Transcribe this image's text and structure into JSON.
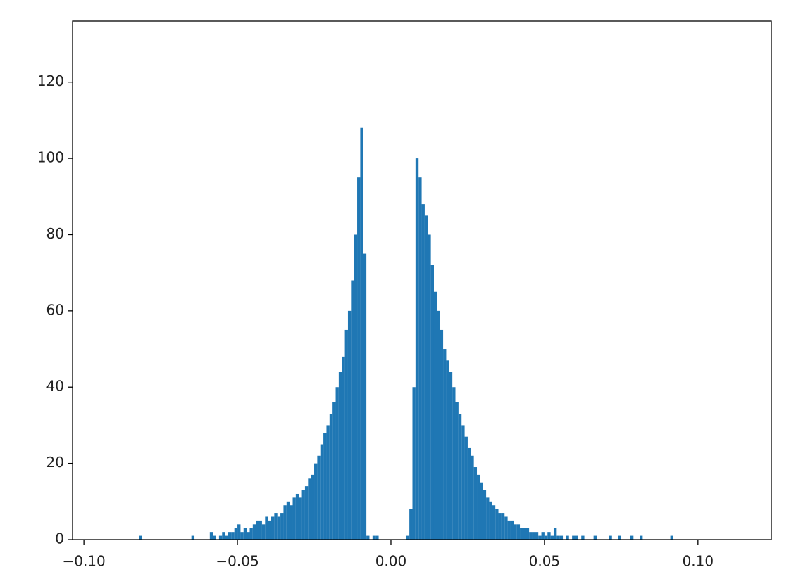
{
  "chart_data": {
    "type": "histogram",
    "bins": [
      -0.082,
      -0.081,
      -0.08,
      -0.079,
      -0.078,
      -0.077,
      -0.076,
      -0.075,
      -0.074,
      -0.073,
      -0.072,
      -0.071,
      -0.07,
      -0.069,
      -0.068,
      -0.067,
      -0.066,
      -0.065,
      -0.064,
      -0.063,
      -0.062,
      -0.061,
      -0.06,
      -0.059,
      -0.058,
      -0.057,
      -0.056,
      -0.055,
      -0.054,
      -0.053,
      -0.052,
      -0.051,
      -0.05,
      -0.049,
      -0.048,
      -0.047,
      -0.046,
      -0.045,
      -0.044,
      -0.043,
      -0.042,
      -0.041,
      -0.04,
      -0.039,
      -0.038,
      -0.037,
      -0.036,
      -0.035,
      -0.034,
      -0.033,
      -0.032,
      -0.031,
      -0.03,
      -0.029,
      -0.028,
      -0.027,
      -0.026,
      -0.025,
      -0.024,
      -0.023,
      -0.022,
      -0.021,
      -0.02,
      -0.019,
      -0.018,
      -0.017,
      -0.016,
      -0.015,
      -0.014,
      -0.013,
      -0.012,
      -0.011,
      -0.01,
      -0.009,
      -0.008,
      -0.007,
      -0.006,
      -0.005,
      -0.004,
      -0.003,
      -0.002,
      -0.001,
      0,
      0.001,
      0.002,
      0.003,
      0.004,
      0.005,
      0.006,
      0.007,
      0.008,
      0.009,
      0.01,
      0.011,
      0.012,
      0.013,
      0.014,
      0.015,
      0.016,
      0.017,
      0.018,
      0.019,
      0.02,
      0.021,
      0.022,
      0.023,
      0.024,
      0.025,
      0.026,
      0.027,
      0.028,
      0.029,
      0.03,
      0.031,
      0.032,
      0.033,
      0.034,
      0.035,
      0.036,
      0.037,
      0.038,
      0.039,
      0.04,
      0.041,
      0.042,
      0.043,
      0.044,
      0.045,
      0.046,
      0.047,
      0.048,
      0.049,
      0.05,
      0.051,
      0.052,
      0.053,
      0.054,
      0.055,
      0.056,
      0.057,
      0.058,
      0.059,
      0.06,
      0.061,
      0.062,
      0.063,
      0.064,
      0.065,
      0.066,
      0.067,
      0.068,
      0.069,
      0.07,
      0.071,
      0.072,
      0.073,
      0.074,
      0.075,
      0.076,
      0.077,
      0.078,
      0.079,
      0.08,
      0.081,
      0.082,
      0.083,
      0.084,
      0.085,
      0.086,
      0.087,
      0.088,
      0.089,
      0.09,
      0.091,
      0.092,
      0.093
    ],
    "values": [
      1,
      0,
      0,
      0,
      0,
      0,
      0,
      0,
      0,
      0,
      0,
      0,
      0,
      0,
      0,
      0,
      0,
      1,
      0,
      0,
      0,
      0,
      0,
      2,
      1,
      0,
      1,
      2,
      1,
      2,
      2,
      3,
      4,
      2,
      3,
      2,
      3,
      4,
      5,
      5,
      4,
      6,
      5,
      6,
      7,
      6,
      7,
      9,
      10,
      9,
      11,
      12,
      11,
      13,
      14,
      16,
      17,
      20,
      22,
      25,
      28,
      30,
      33,
      36,
      40,
      44,
      48,
      55,
      60,
      68,
      80,
      95,
      108,
      75,
      1,
      0,
      1,
      1,
      0,
      0,
      0,
      0,
      0,
      0,
      0,
      0,
      0,
      1,
      8,
      40,
      100,
      95,
      88,
      85,
      80,
      72,
      65,
      60,
      55,
      50,
      47,
      44,
      40,
      36,
      33,
      30,
      27,
      24,
      22,
      19,
      17,
      15,
      13,
      11,
      10,
      9,
      8,
      7,
      7,
      6,
      5,
      5,
      4,
      4,
      3,
      3,
      3,
      2,
      2,
      2,
      1,
      2,
      1,
      2,
      1,
      3,
      1,
      1,
      0,
      1,
      0,
      1,
      1,
      0,
      1,
      0,
      0,
      0,
      1,
      0,
      0,
      0,
      0,
      1,
      0,
      0,
      1,
      0,
      0,
      0,
      1,
      0,
      0,
      1,
      0,
      0,
      0,
      0,
      0,
      0,
      0,
      0,
      0,
      1,
      0
    ],
    "color": "#1f77b4",
    "xlim": [
      -0.1037,
      0.1239
    ],
    "xticks": [
      {
        "value": -0.1,
        "label": "−0.10"
      },
      {
        "value": -0.05,
        "label": "−0.05"
      },
      {
        "value": 0,
        "label": "0.00"
      },
      0.05,
      {
        "value": 0.1,
        "label": "0.10"
      }
    ],
    "ylim": [
      0,
      136
    ],
    "yticks": [
      0,
      20,
      40,
      60,
      80,
      100,
      120
    ]
  }
}
